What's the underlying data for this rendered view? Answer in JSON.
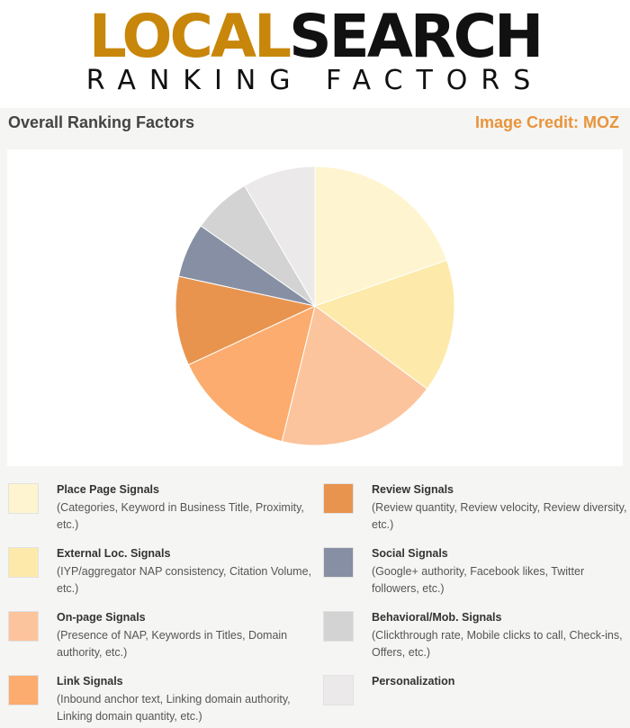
{
  "logo": {
    "word1": "LOCAL",
    "word2": "SEARCH",
    "subtitle": "RANKING FACTORS"
  },
  "heading": {
    "title": "Overall Ranking Factors",
    "credit": "Image Credit: MOZ"
  },
  "colors": {
    "logo_local": "#c8860a",
    "credit": "#e8943c"
  },
  "chart_data": {
    "type": "pie",
    "title": "Overall Ranking Factors",
    "legend_placement": "bottom",
    "slices": [
      {
        "label": "Place Page Signals",
        "description": "(Categories, Keyword in Business Title, Proximity, etc.)",
        "value": 19.6,
        "color": "#fef4cf"
      },
      {
        "label": "External Loc. Signals",
        "description": "(IYP/aggregator NAP consistency, Citation Volume, etc.)",
        "value": 15.4,
        "color": "#fdeaaa"
      },
      {
        "label": "On-page Signals",
        "description": "(Presence of NAP, Keywords in Titles, Domain authority, etc.)",
        "value": 18.6,
        "color": "#fcc49c"
      },
      {
        "label": "Link Signals",
        "description": "(Inbound anchor text, Linking domain authority, Linking domain quantity, etc.)",
        "value": 14.2,
        "color": "#fbac6e"
      },
      {
        "label": "Review Signals",
        "description": "(Review quantity, Review velocity, Review diversity, etc.)",
        "value": 10.3,
        "color": "#e8944f"
      },
      {
        "label": "Social Signals",
        "description": "(Google+ authority, Facebook likes, Twitter followers, etc.)",
        "value": 6.3,
        "color": "#878fa4"
      },
      {
        "label": "Behavioral/Mob. Signals",
        "description": "(Clickthrough rate, Mobile clicks to call, Check-ins, Offers, etc.)",
        "value": 6.8,
        "color": "#d3d3d3"
      },
      {
        "label": "Personalization",
        "description": "",
        "value": 8.4,
        "color": "#ebe9ea"
      }
    ]
  }
}
